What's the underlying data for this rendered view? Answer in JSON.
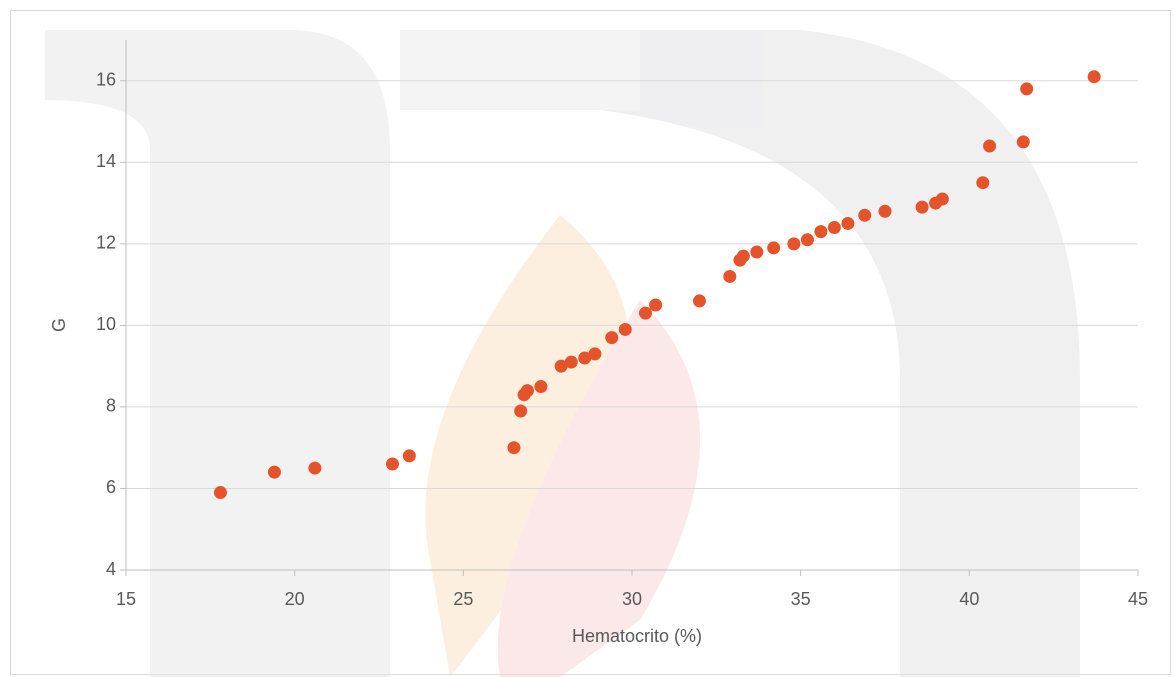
{
  "chart_data": {
    "type": "scatter",
    "x_label": "Hematocrito (%)",
    "y_label": "G",
    "color": "#e5532a",
    "x": [
      17.8,
      19.4,
      20.6,
      22.9,
      23.4,
      26.5,
      26.7,
      26.8,
      26.9,
      27.3,
      27.9,
      28.2,
      28.6,
      28.9,
      29.4,
      29.8,
      30.4,
      30.7,
      32.0,
      32.9,
      33.2,
      33.3,
      33.7,
      34.2,
      34.8,
      35.2,
      35.6,
      36.0,
      36.4,
      36.9,
      37.5,
      38.6,
      39.0,
      39.2,
      40.4,
      40.6,
      41.6,
      41.7,
      43.7
    ],
    "values": [
      5.9,
      6.4,
      6.5,
      6.6,
      6.8,
      7.0,
      7.9,
      8.3,
      8.4,
      8.5,
      9.0,
      9.1,
      9.2,
      9.3,
      9.7,
      9.9,
      10.3,
      10.5,
      10.6,
      11.2,
      11.6,
      11.7,
      11.8,
      11.9,
      12.0,
      12.1,
      12.3,
      12.4,
      12.5,
      12.7,
      12.8,
      12.9,
      13.0,
      13.1,
      13.5,
      14.4,
      14.5,
      15.8,
      16.1
    ],
    "xlim": [
      15,
      45
    ],
    "xticks": [
      15,
      20,
      25,
      30,
      35,
      40,
      45
    ],
    "ylim": [
      4,
      17
    ],
    "yticks": [
      4,
      6,
      8,
      10,
      12,
      14,
      16
    ],
    "grid": true
  }
}
